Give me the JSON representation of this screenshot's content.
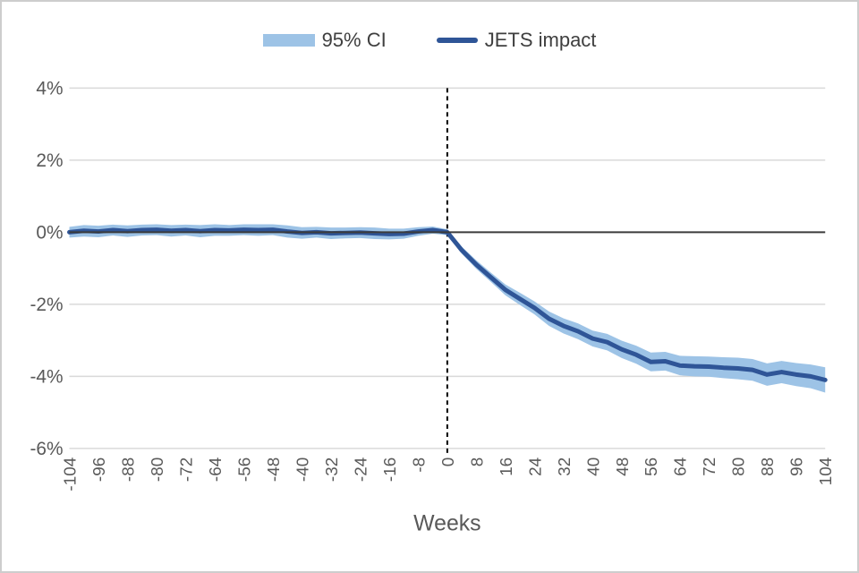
{
  "frame": {
    "background": "#ffffff",
    "border_color": "#cdcdcd"
  },
  "legend": {
    "ci_label": "95% CI",
    "impact_label": "JETS impact"
  },
  "colors": {
    "ci_band": "#9DC3E6",
    "impact_line": "#2F5597",
    "gridline": "#d9d9d9",
    "zero_axis": "#3b3b3b",
    "event_line": "#000000",
    "tick_text": "#595959",
    "legend_text": "#3f3f3f"
  },
  "chart_data": {
    "type": "line",
    "title": "",
    "xlabel": "Weeks",
    "ylabel": "",
    "legend_position": "top-center",
    "grid": "horizontal",
    "xlim": [
      -104,
      104
    ],
    "ylim": [
      -6,
      4
    ],
    "event_line_x": 0,
    "x_ticks": [
      -104,
      -96,
      -88,
      -80,
      -72,
      -64,
      -56,
      -48,
      -40,
      -32,
      -24,
      -16,
      -8,
      0,
      8,
      16,
      24,
      32,
      40,
      48,
      56,
      64,
      72,
      80,
      88,
      96,
      104
    ],
    "y_ticks": [
      {
        "value": 4,
        "label": "4%"
      },
      {
        "value": 2,
        "label": "2%"
      },
      {
        "value": 0,
        "label": "0%"
      },
      {
        "value": -2,
        "label": "-2%"
      },
      {
        "value": -4,
        "label": "-4%"
      },
      {
        "value": -6,
        "label": "-6%"
      }
    ],
    "x": [
      -104,
      -100,
      -96,
      -92,
      -88,
      -84,
      -80,
      -76,
      -72,
      -68,
      -64,
      -60,
      -56,
      -52,
      -48,
      -44,
      -40,
      -36,
      -32,
      -28,
      -24,
      -20,
      -16,
      -12,
      -8,
      -4,
      0,
      4,
      8,
      12,
      16,
      20,
      24,
      28,
      32,
      36,
      40,
      44,
      48,
      52,
      56,
      60,
      64,
      68,
      72,
      76,
      80,
      84,
      88,
      92,
      96,
      100,
      104
    ],
    "series": [
      {
        "name": "JETS impact",
        "unit": "%",
        "values": [
          0.0,
          0.04,
          0.02,
          0.06,
          0.03,
          0.06,
          0.07,
          0.04,
          0.06,
          0.03,
          0.06,
          0.05,
          0.07,
          0.06,
          0.07,
          0.02,
          -0.02,
          0.0,
          -0.03,
          -0.02,
          -0.01,
          -0.03,
          -0.05,
          -0.04,
          0.02,
          0.06,
          0.0,
          -0.5,
          -0.9,
          -1.25,
          -1.6,
          -1.85,
          -2.1,
          -2.4,
          -2.6,
          -2.75,
          -2.95,
          -3.05,
          -3.25,
          -3.4,
          -3.6,
          -3.58,
          -3.7,
          -3.72,
          -3.73,
          -3.76,
          -3.78,
          -3.82,
          -3.95,
          -3.88,
          -3.95,
          -4.0,
          -4.1
        ]
      },
      {
        "name": "95% CI half-width",
        "unit": "%",
        "values": [
          0.15,
          0.16,
          0.16,
          0.15,
          0.16,
          0.15,
          0.15,
          0.16,
          0.15,
          0.17,
          0.16,
          0.15,
          0.15,
          0.16,
          0.15,
          0.17,
          0.16,
          0.15,
          0.16,
          0.15,
          0.15,
          0.16,
          0.15,
          0.14,
          0.12,
          0.1,
          0.08,
          0.1,
          0.12,
          0.13,
          0.15,
          0.17,
          0.18,
          0.2,
          0.21,
          0.22,
          0.22,
          0.23,
          0.24,
          0.25,
          0.26,
          0.26,
          0.27,
          0.28,
          0.28,
          0.29,
          0.3,
          0.3,
          0.31,
          0.31,
          0.32,
          0.33,
          0.35
        ]
      }
    ]
  }
}
